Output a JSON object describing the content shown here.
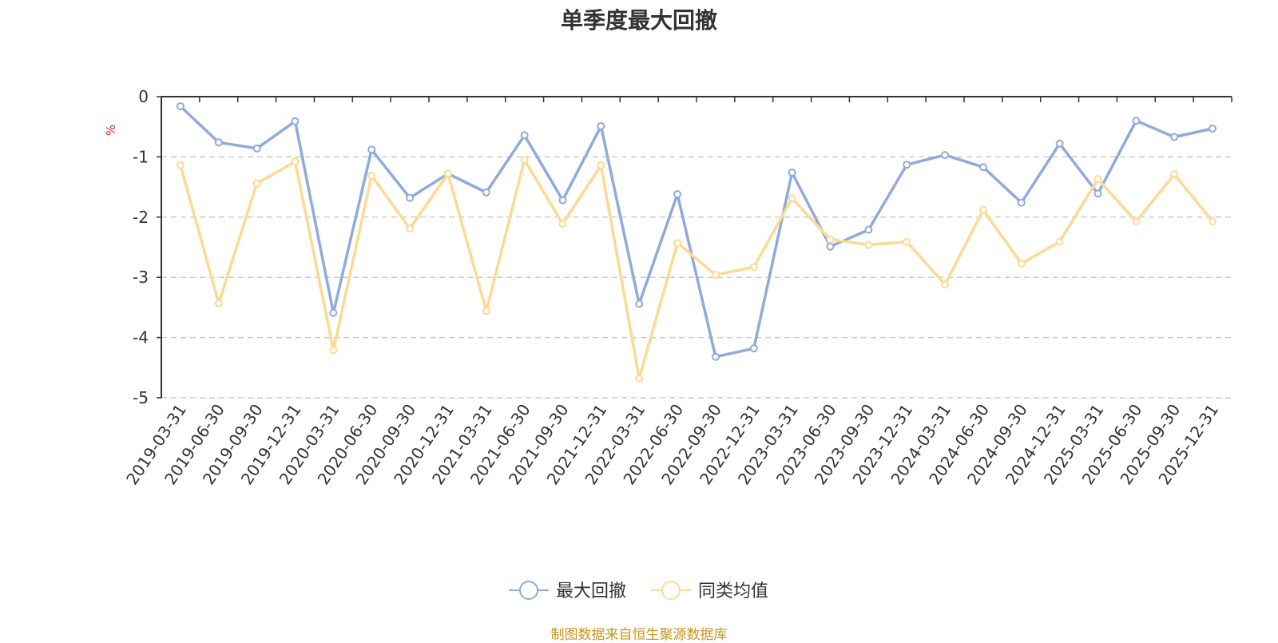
{
  "chart_data": {
    "type": "line",
    "title": "单季度最大回撤",
    "ylabel": "%",
    "ylim": [
      -5,
      0
    ],
    "yticks": [
      0,
      -1,
      -2,
      -3,
      -4,
      -5
    ],
    "grid": true,
    "legend_position": "bottom",
    "categories": [
      "2019-03-31",
      "2019-06-30",
      "2019-09-30",
      "2019-12-31",
      "2020-03-31",
      "2020-06-30",
      "2020-09-30",
      "2020-12-31",
      "2021-03-31",
      "2021-06-30",
      "2021-09-30",
      "2021-12-31",
      "2022-03-31",
      "2022-06-30",
      "2022-09-30",
      "2022-12-31",
      "2023-03-31",
      "2023-06-30",
      "2023-09-30",
      "2023-12-31",
      "2024-03-31",
      "2024-06-30",
      "2024-09-30",
      "2024-12-31",
      "2025-03-31",
      "2025-06-30",
      "2025-09-30",
      "2025-12-31"
    ],
    "series": [
      {
        "name": "最大回撤",
        "color": "#8faadc",
        "values": [
          -0.16,
          -0.76,
          -0.86,
          -0.41,
          -3.59,
          -0.88,
          -1.68,
          -1.28,
          -1.59,
          -0.64,
          -1.72,
          -0.49,
          -3.44,
          -1.62,
          -4.32,
          -4.18,
          -1.26,
          -2.49,
          -2.21,
          -1.13,
          -0.97,
          -1.17,
          -1.76,
          -0.78,
          -1.61,
          -0.4,
          -0.67,
          -0.53
        ]
      },
      {
        "name": "同类均值",
        "color": "#ffd993",
        "values": [
          -1.14,
          -3.43,
          -1.44,
          -1.08,
          -4.21,
          -1.31,
          -2.19,
          -1.28,
          -3.56,
          -1.05,
          -2.11,
          -1.14,
          -4.68,
          -2.43,
          -2.96,
          -2.83,
          -1.69,
          -2.37,
          -2.46,
          -2.41,
          -3.12,
          -1.88,
          -2.77,
          -2.41,
          -1.37,
          -2.07,
          -1.29,
          -2.07
        ]
      }
    ]
  },
  "colors": {
    "axis": "#333333",
    "grid": "#cccccc",
    "unit": "#e0251c",
    "source": "#c8961e"
  },
  "footer": {
    "source": "制图数据来自恒生聚源数据库"
  }
}
